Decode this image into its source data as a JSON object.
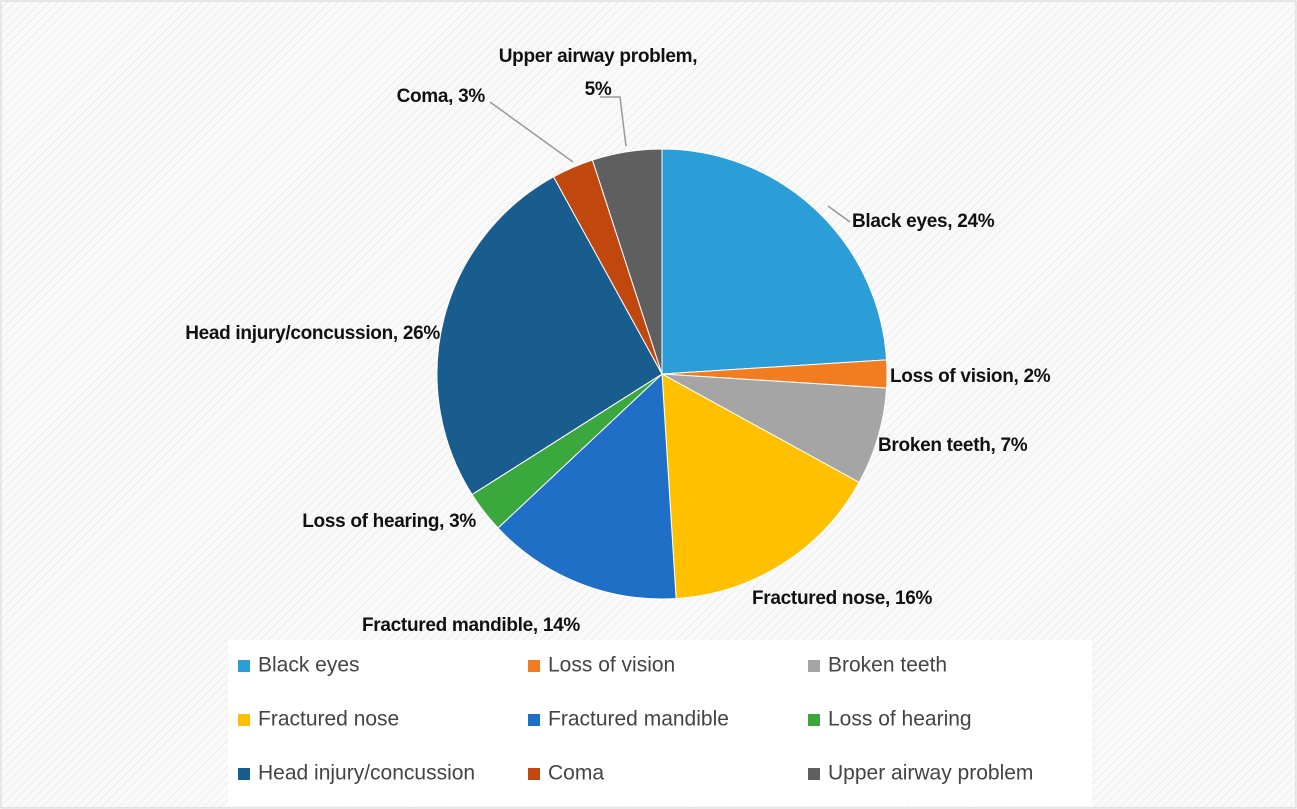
{
  "chart_data": {
    "type": "pie",
    "categories": [
      "Black eyes",
      "Loss of vision",
      "Broken teeth",
      "Fractured nose",
      "Fractured mandible",
      "Loss of hearing",
      "Head injury/concussion",
      "Coma",
      "Upper airway problem"
    ],
    "values": [
      24,
      2,
      7,
      16,
      14,
      3,
      26,
      3,
      5
    ],
    "value_labels": [
      "Black eyes, 24%",
      "Loss of vision, 2%",
      "Broken teeth, 7%",
      "Fractured nose, 16%",
      "Fractured mandible, 14%",
      "Loss of hearing, 3%",
      "Head injury/concussion, 26%",
      "Coma, 3%",
      "Upper airway problem, 5%"
    ],
    "colors": [
      "#2b9ed8",
      "#f27d21",
      "#a5a5a5",
      "#ffc000",
      "#1f6fc6",
      "#3aa83c",
      "#195c8e",
      "#c0470e",
      "#5f5f5f"
    ],
    "legend": "bottom"
  }
}
